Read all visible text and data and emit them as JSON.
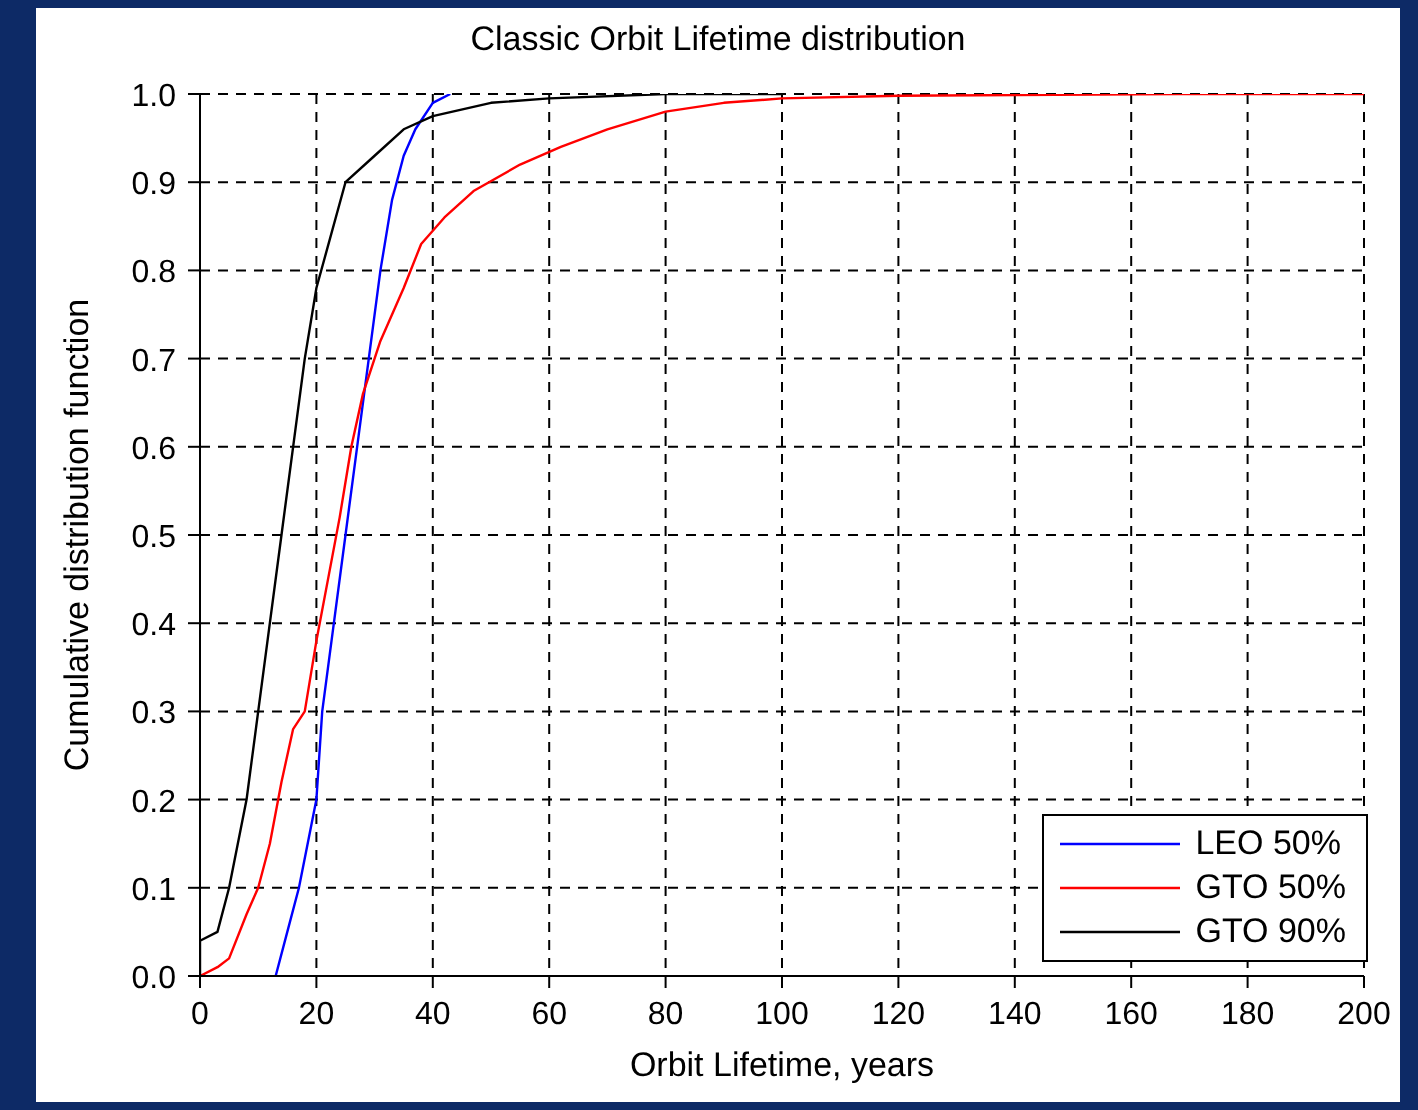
{
  "chart_data": {
    "type": "line",
    "title": "Classic Orbit Lifetime distribution",
    "xlabel": "Orbit Lifetime, years",
    "ylabel": "Cumulative distribution function",
    "xlim": [
      0,
      200
    ],
    "xticks": [
      0,
      20,
      40,
      60,
      80,
      100,
      120,
      140,
      160,
      180,
      200
    ],
    "ylim": [
      0,
      1
    ],
    "yticks": [
      {
        "value": 0,
        "label": "0.0"
      },
      {
        "value": 0.1,
        "label": "0.1"
      },
      {
        "value": 0.2,
        "label": "0.2"
      },
      {
        "value": 0.3,
        "label": "0.3"
      },
      {
        "value": 0.4,
        "label": "0.4"
      },
      {
        "value": 0.5,
        "label": "0.5"
      },
      {
        "value": 0.6,
        "label": "0.6"
      },
      {
        "value": 0.7,
        "label": "0.7"
      },
      {
        "value": 0.8,
        "label": "0.8"
      },
      {
        "value": 0.9,
        "label": "0.9"
      },
      {
        "value": 1,
        "label": "1.0"
      }
    ],
    "grid": true,
    "legend": "bottom right",
    "marker": "none",
    "line_style": "solid",
    "series": [
      {
        "name": "LEO 50%",
        "color": "#0000ff",
        "x": [
          13,
          15,
          17,
          20,
          21,
          23,
          25,
          27,
          29,
          31,
          33,
          35,
          37,
          40,
          43
        ],
        "values": [
          0,
          0.05,
          0.1,
          0.2,
          0.3,
          0.4,
          0.5,
          0.6,
          0.7,
          0.8,
          0.88,
          0.93,
          0.96,
          0.99,
          1
        ]
      },
      {
        "name": "GTO 50%",
        "color": "#ff0000",
        "x": [
          0,
          3,
          5,
          8,
          10,
          12,
          14,
          16,
          18,
          20,
          22,
          24,
          26,
          28,
          31,
          35,
          38,
          42,
          47,
          55,
          62,
          70,
          80,
          90,
          100,
          120,
          168,
          200
        ],
        "values": [
          0,
          0.01,
          0.02,
          0.07,
          0.1,
          0.15,
          0.22,
          0.28,
          0.3,
          0.38,
          0.45,
          0.52,
          0.6,
          0.66,
          0.72,
          0.78,
          0.83,
          0.86,
          0.89,
          0.92,
          0.94,
          0.96,
          0.98,
          0.99,
          0.995,
          0.998,
          1,
          1
        ]
      },
      {
        "name": "GTO 90%",
        "color": "#000000",
        "x": [
          0,
          0,
          3,
          5,
          8,
          10,
          12,
          14,
          16,
          18,
          20,
          25,
          30,
          35,
          40,
          50,
          60,
          80,
          100
        ],
        "values": [
          0,
          0.04,
          0.05,
          0.1,
          0.2,
          0.3,
          0.4,
          0.5,
          0.6,
          0.7,
          0.78,
          0.9,
          0.93,
          0.96,
          0.975,
          0.99,
          0.995,
          1,
          1
        ]
      }
    ]
  }
}
